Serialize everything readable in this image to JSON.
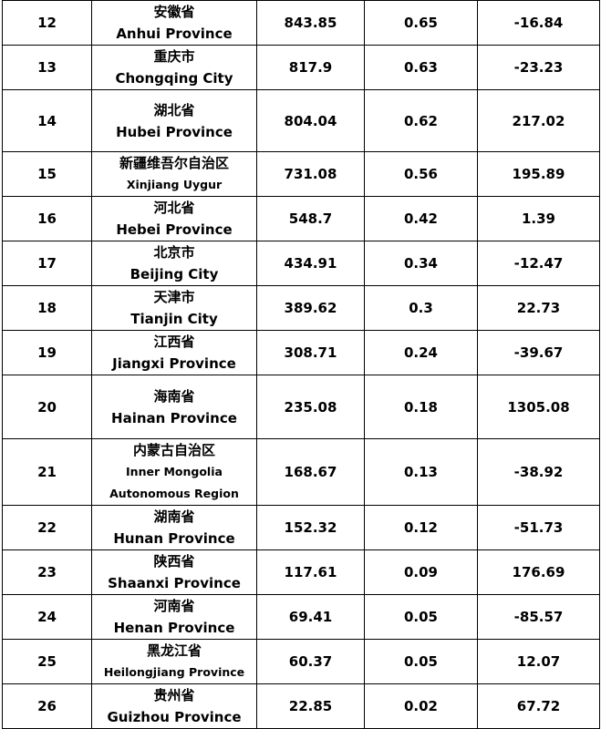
{
  "rows": [
    {
      "rank": "12",
      "cn": "安徽省",
      "en": [
        "Anhui Province"
      ],
      "value": "843.85",
      "share": "0.65",
      "change": "-16.84",
      "h": 48,
      "small": false
    },
    {
      "rank": "13",
      "cn": "重庆市",
      "en": [
        "Chongqing City"
      ],
      "value": "817.9",
      "share": "0.63",
      "change": "-23.23",
      "h": 48,
      "small": false
    },
    {
      "rank": "14",
      "cn": "湖北省",
      "en": [
        "Hubei Province"
      ],
      "value": "804.04",
      "share": "0.62",
      "change": "217.02",
      "h": 68,
      "small": false
    },
    {
      "rank": "15",
      "cn": "新疆维吾尔自治区",
      "en": [
        "Xinjiang Uygur"
      ],
      "value": "731.08",
      "share": "0.56",
      "change": "195.89",
      "h": 48,
      "small": true
    },
    {
      "rank": "16",
      "cn": "河北省",
      "en": [
        "Hebei Province"
      ],
      "value": "548.7",
      "share": "0.42",
      "change": "1.39",
      "h": 48,
      "small": false
    },
    {
      "rank": "17",
      "cn": "北京市",
      "en": [
        "Beijing City"
      ],
      "value": "434.91",
      "share": "0.34",
      "change": "-12.47",
      "h": 48,
      "small": false
    },
    {
      "rank": "18",
      "cn": "天津市",
      "en": [
        "Tianjin City"
      ],
      "value": "389.62",
      "share": "0.3",
      "change": "22.73",
      "h": 48,
      "small": false
    },
    {
      "rank": "19",
      "cn": "江西省",
      "en": [
        "Jiangxi Province"
      ],
      "value": "308.71",
      "share": "0.24",
      "change": "-39.67",
      "h": 48,
      "small": false
    },
    {
      "rank": "20",
      "cn": "海南省",
      "en": [
        "Hainan Province"
      ],
      "value": "235.08",
      "share": "0.18",
      "change": "1305.08",
      "h": 70,
      "small": false
    },
    {
      "rank": "21",
      "cn": "内蒙古自治区",
      "en": [
        "Inner Mongolia",
        "Autonomous Region"
      ],
      "value": "168.67",
      "share": "0.13",
      "change": "-38.92",
      "h": 72,
      "small": true
    },
    {
      "rank": "22",
      "cn": "湖南省",
      "en": [
        "Hunan Province"
      ],
      "value": "152.32",
      "share": "0.12",
      "change": "-51.73",
      "h": 48,
      "small": false
    },
    {
      "rank": "23",
      "cn": "陕西省",
      "en": [
        "Shaanxi Province"
      ],
      "value": "117.61",
      "share": "0.09",
      "change": "176.69",
      "h": 48,
      "small": false
    },
    {
      "rank": "24",
      "cn": "河南省",
      "en": [
        "Henan Province"
      ],
      "value": "69.41",
      "share": "0.05",
      "change": "-85.57",
      "h": 48,
      "small": false
    },
    {
      "rank": "25",
      "cn": "黑龙江省",
      "en": [
        "Heilongjiang Province"
      ],
      "value": "60.37",
      "share": "0.05",
      "change": "12.07",
      "h": 48,
      "small": true
    },
    {
      "rank": "26",
      "cn": "贵州省",
      "en": [
        "Guizhou Province"
      ],
      "value": "22.85",
      "share": "0.02",
      "change": "67.72",
      "h": 48,
      "small": false
    }
  ]
}
